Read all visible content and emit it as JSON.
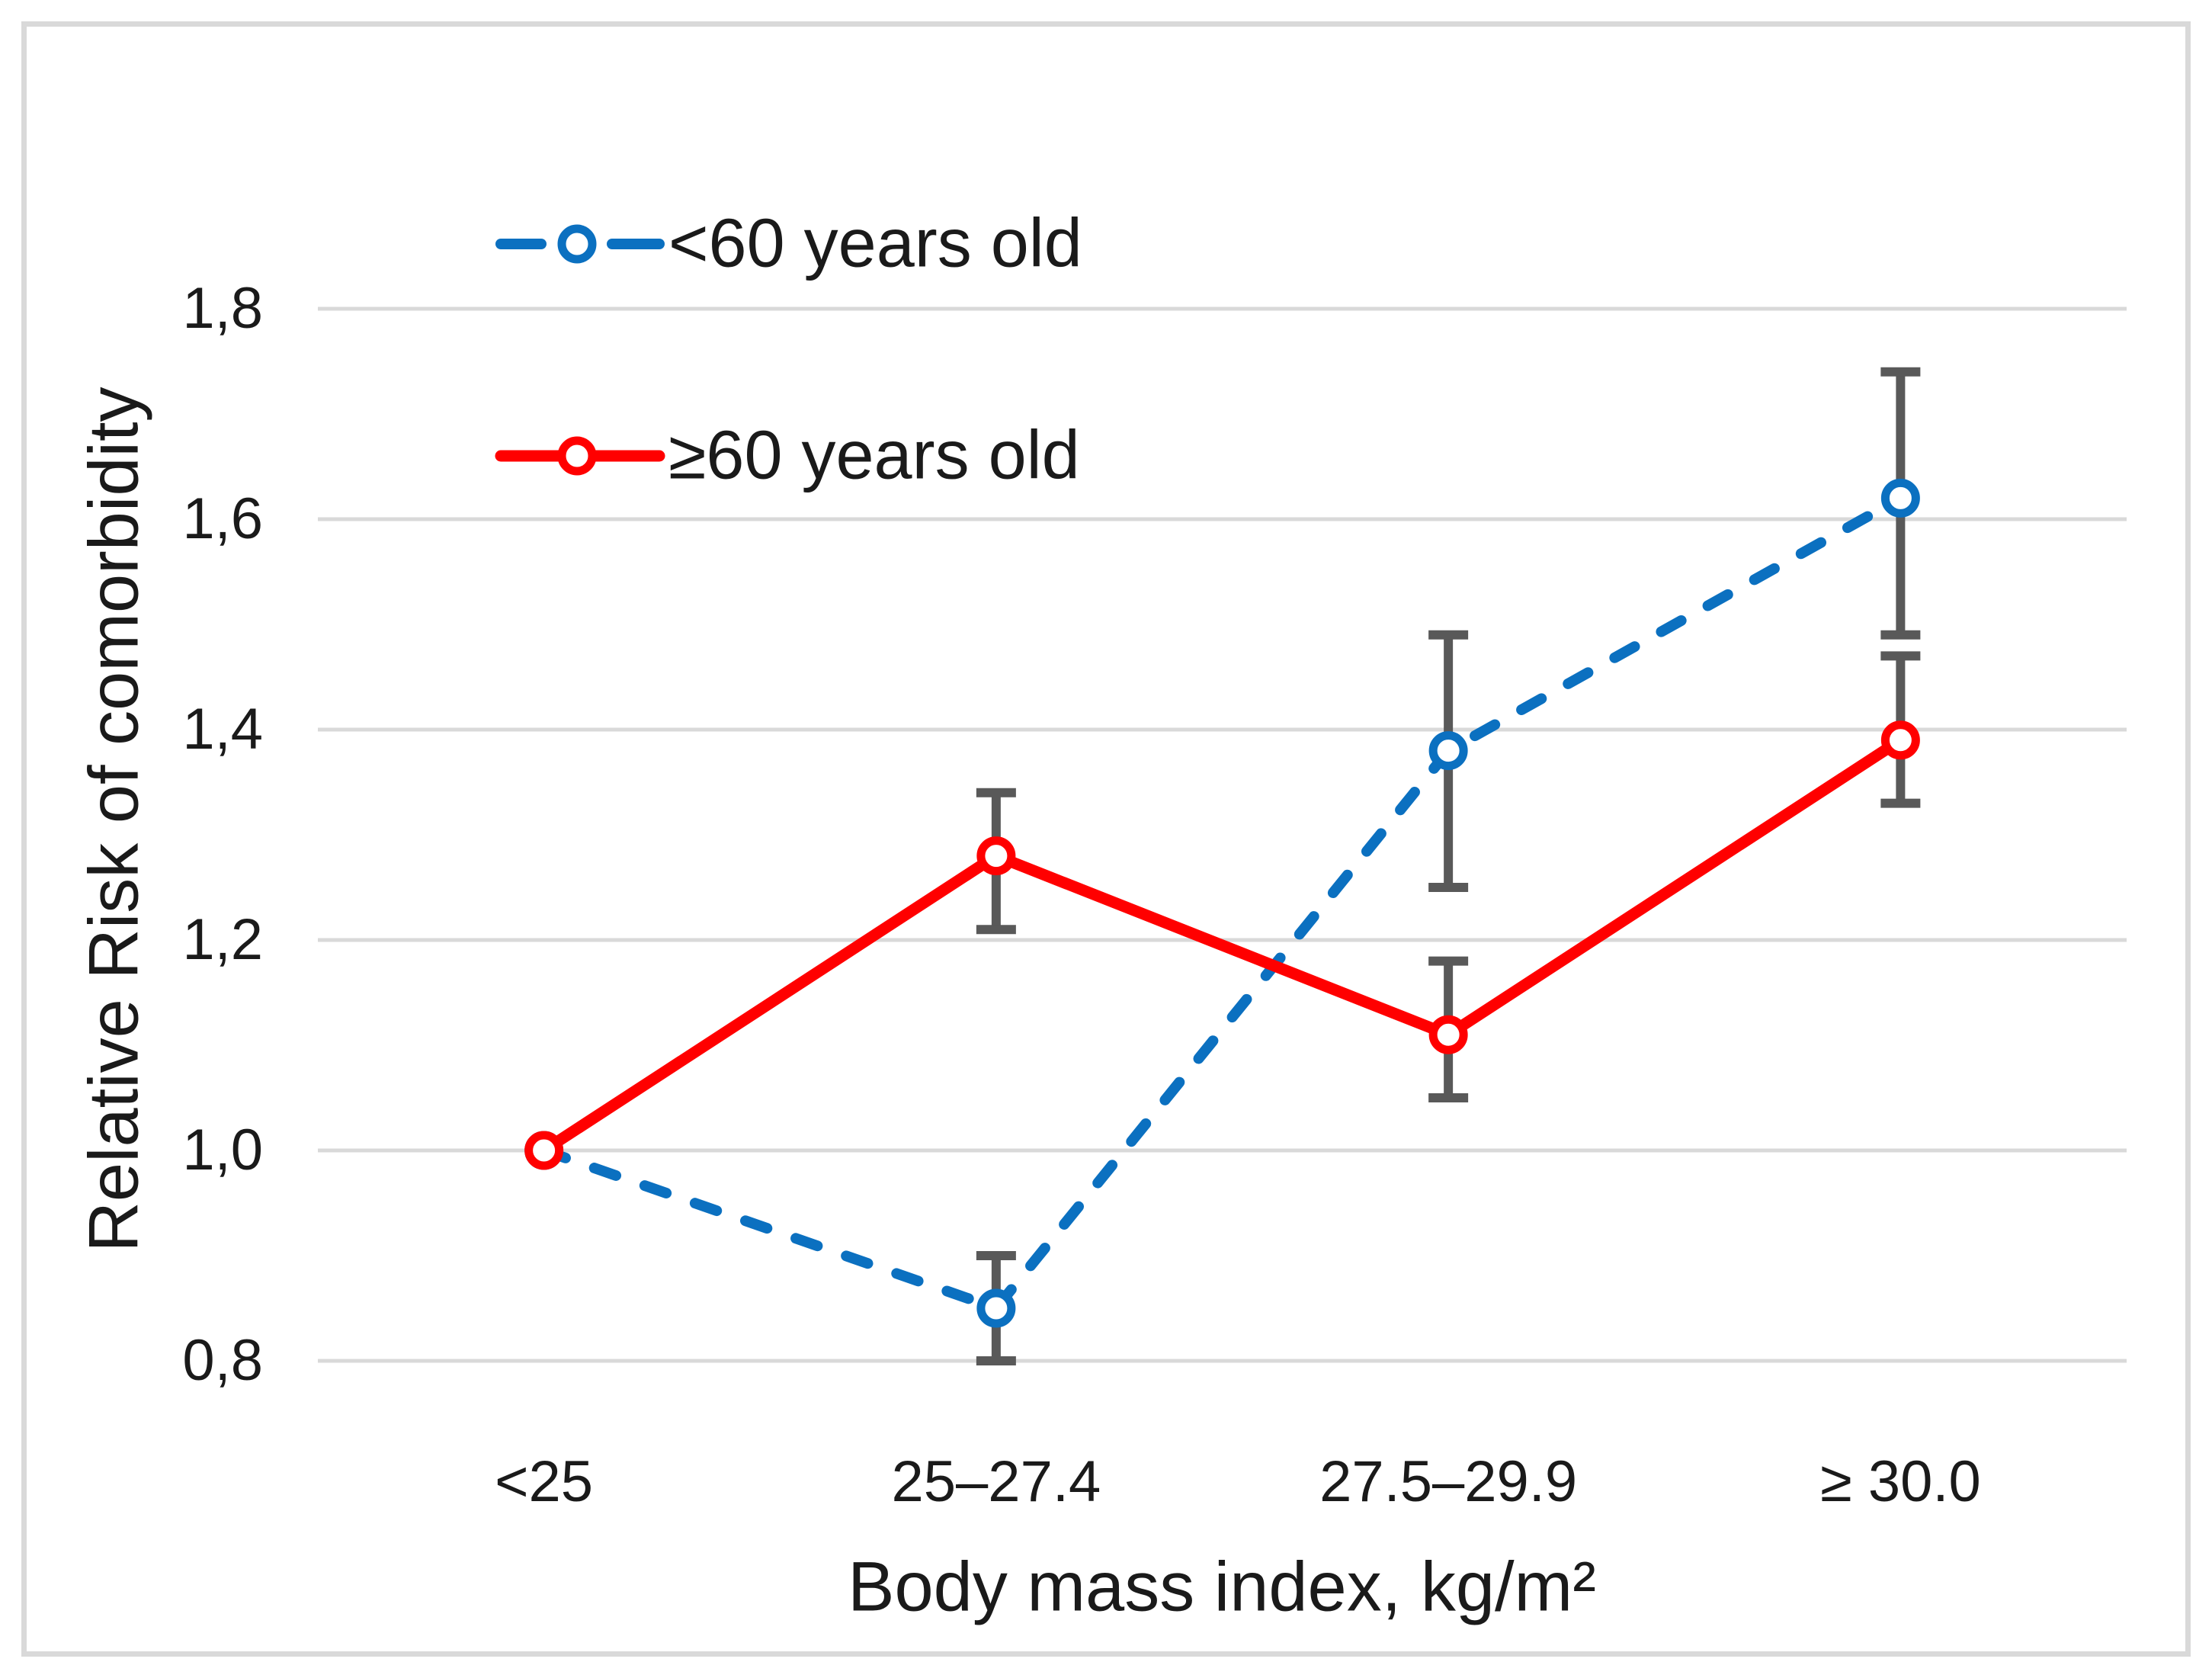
{
  "figure": {
    "background": "#FFFFFF",
    "border_color": "#D9D9D9"
  },
  "chart_data": {
    "type": "line",
    "title": "",
    "xlabel": "Body mass index, kg/m²",
    "ylabel": "Relative Risk of comorbidity",
    "categories": [
      "<25",
      "25–27.4",
      "27.5–29.9",
      "≥ 30.0"
    ],
    "ylim": [
      0.8,
      1.8
    ],
    "grid": "horizontal-only",
    "legend_position": "inside-top-left",
    "decimal_separator": ",",
    "yticks": [
      {
        "label": "1,8",
        "value": 1.8
      },
      {
        "label": "1,6",
        "value": 1.6
      },
      {
        "label": "1,4",
        "value": 1.4
      },
      {
        "label": "1,2",
        "value": 1.2
      },
      {
        "label": "1,0",
        "value": 1.0
      },
      {
        "label": "0,8",
        "value": 0.8
      }
    ],
    "series": [
      {
        "name": "<60 years old",
        "color": "#0B70C0",
        "line_style": "dashed",
        "marker": "open-circle",
        "values": [
          1.0,
          0.85,
          1.38,
          1.62
        ],
        "error_low": [
          null,
          0.8,
          1.25,
          1.49
        ],
        "error_high": [
          null,
          0.9,
          1.49,
          1.74
        ]
      },
      {
        "name": "≥60 years old",
        "color": "#FF0000",
        "line_style": "solid",
        "marker": "open-circle",
        "values": [
          1.0,
          1.28,
          1.11,
          1.39
        ],
        "error_low": [
          null,
          1.21,
          1.05,
          1.33
        ],
        "error_high": [
          null,
          1.34,
          1.18,
          1.47
        ]
      }
    ],
    "error_bar_color": "#595959",
    "gridline_color": "#D9D9D9",
    "text_color": "#1A1A1A",
    "marker_fill": "#FFFFFF"
  }
}
